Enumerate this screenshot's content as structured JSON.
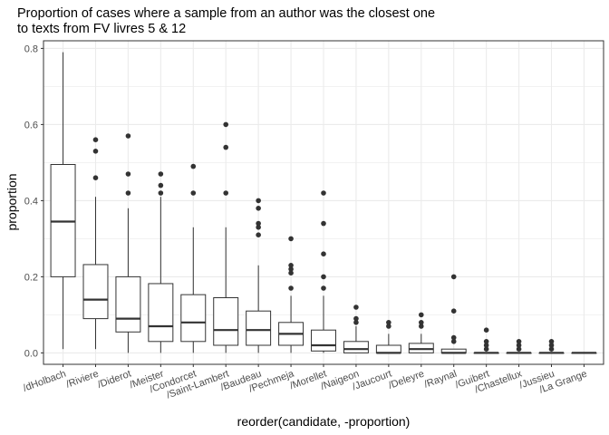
{
  "chart_data": {
    "type": "box",
    "title_lines": [
      "Proportion of cases where a sample from an author was the closest one",
      "to texts from FV livres 5 & 12"
    ],
    "xlabel": "reorder(candidate, -proportion)",
    "ylabel": "proportion",
    "ylim": [
      -0.03,
      0.82
    ],
    "y_ticks": [
      0.0,
      0.2,
      0.4,
      0.6,
      0.8
    ],
    "y_tick_labels": [
      "0.0",
      "0.2",
      "0.4",
      "0.6",
      "0.8"
    ],
    "grid": true,
    "categories": [
      "/dHolbach",
      "/Riviere",
      "/Diderot",
      "/Meister",
      "/Condorcet",
      "/Saint-Lambert",
      "/Baudeau",
      "/Pechmeja",
      "/Morellet",
      "/Naigeon",
      "/Jaucourt",
      "/Deleyre",
      "/Raynal",
      "/Guibert",
      "/Chastellux",
      "/Jussieu",
      "/La Grange"
    ],
    "boxes": [
      {
        "min": 0.01,
        "q1": 0.2,
        "median": 0.345,
        "q3": 0.495,
        "max": 0.79,
        "outliers": []
      },
      {
        "min": 0.01,
        "q1": 0.09,
        "median": 0.14,
        "q3": 0.232,
        "max": 0.41,
        "outliers": [
          0.46,
          0.53,
          0.56
        ]
      },
      {
        "min": 0.0,
        "q1": 0.055,
        "median": 0.09,
        "q3": 0.2,
        "max": 0.38,
        "outliers": [
          0.42,
          0.47,
          0.57
        ]
      },
      {
        "min": 0.0,
        "q1": 0.03,
        "median": 0.07,
        "q3": 0.182,
        "max": 0.41,
        "outliers": [
          0.42,
          0.44,
          0.47
        ]
      },
      {
        "min": 0.0,
        "q1": 0.03,
        "median": 0.08,
        "q3": 0.153,
        "max": 0.33,
        "outliers": [
          0.42,
          0.49
        ]
      },
      {
        "min": 0.0,
        "q1": 0.02,
        "median": 0.06,
        "q3": 0.145,
        "max": 0.33,
        "outliers": [
          0.42,
          0.54,
          0.6
        ]
      },
      {
        "min": 0.0,
        "q1": 0.02,
        "median": 0.06,
        "q3": 0.11,
        "max": 0.23,
        "outliers": [
          0.31,
          0.33,
          0.34,
          0.38,
          0.4
        ]
      },
      {
        "min": 0.0,
        "q1": 0.02,
        "median": 0.05,
        "q3": 0.08,
        "max": 0.15,
        "outliers": [
          0.17,
          0.21,
          0.22,
          0.23,
          0.3
        ]
      },
      {
        "min": 0.0,
        "q1": 0.005,
        "median": 0.02,
        "q3": 0.06,
        "max": 0.15,
        "outliers": [
          0.17,
          0.2,
          0.26,
          0.34,
          0.42
        ]
      },
      {
        "min": 0.0,
        "q1": 0.0,
        "median": 0.01,
        "q3": 0.03,
        "max": 0.07,
        "outliers": [
          0.08,
          0.09,
          0.12
        ]
      },
      {
        "min": 0.0,
        "q1": 0.0,
        "median": 0.0,
        "q3": 0.02,
        "max": 0.05,
        "outliers": [
          0.07,
          0.08
        ]
      },
      {
        "min": 0.0,
        "q1": 0.0,
        "median": 0.01,
        "q3": 0.025,
        "max": 0.05,
        "outliers": [
          0.07,
          0.08,
          0.1
        ]
      },
      {
        "min": 0.0,
        "q1": 0.0,
        "median": 0.0,
        "q3": 0.01,
        "max": 0.01,
        "outliers": [
          0.03,
          0.04,
          0.11,
          0.2
        ]
      },
      {
        "min": 0.0,
        "q1": 0.0,
        "median": 0.0,
        "q3": 0.0,
        "max": 0.0,
        "outliers": [
          0.01,
          0.02,
          0.03,
          0.06
        ]
      },
      {
        "min": 0.0,
        "q1": 0.0,
        "median": 0.0,
        "q3": 0.0,
        "max": 0.0,
        "outliers": [
          0.01,
          0.02,
          0.03
        ]
      },
      {
        "min": 0.0,
        "q1": 0.0,
        "median": 0.0,
        "q3": 0.0,
        "max": 0.0,
        "outliers": [
          0.01,
          0.02,
          0.03
        ]
      },
      {
        "min": 0.0,
        "q1": 0.0,
        "median": 0.0,
        "q3": 0.0,
        "max": 0.0,
        "outliers": []
      }
    ],
    "colors": {
      "panel_border": "#333333",
      "grid": "#ebebeb",
      "box_stroke": "#333333",
      "box_fill": "#ffffff",
      "outlier": "#333333",
      "tick_text": "#4d4d4d"
    }
  }
}
